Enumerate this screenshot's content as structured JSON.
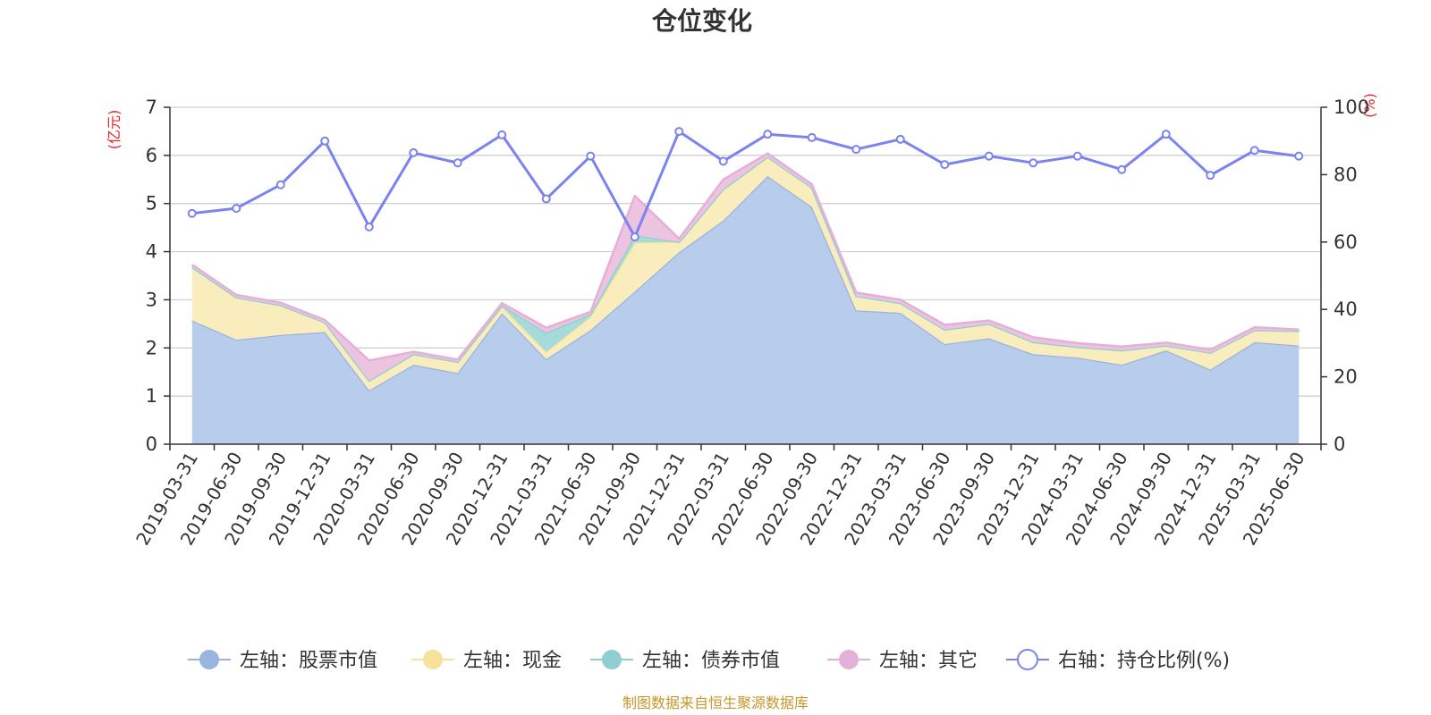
{
  "chart_data": {
    "type": "area",
    "title": "仓位变化",
    "left_axis_unit": "(亿元)",
    "right_axis_unit": "(%)",
    "ylim_left": [
      0,
      7
    ],
    "ylim_right": [
      0,
      100
    ],
    "left_ticks": [
      "0",
      "1",
      "2",
      "3",
      "4",
      "5",
      "6",
      "7"
    ],
    "right_ticks": [
      "0",
      "20",
      "40",
      "60",
      "80",
      "100"
    ],
    "grid": true,
    "legend_position": "bottom",
    "stacked": true,
    "source": "制图数据来自恒生聚源数据库",
    "categories": [
      "2019-03-31",
      "2019-06-30",
      "2019-09-30",
      "2019-12-31",
      "2020-03-31",
      "2020-06-30",
      "2020-09-30",
      "2020-12-31",
      "2021-03-31",
      "2021-06-30",
      "2021-09-30",
      "2021-12-31",
      "2022-03-31",
      "2022-06-30",
      "2022-09-30",
      "2022-12-31",
      "2023-03-31",
      "2023-06-30",
      "2023-09-30",
      "2023-12-31",
      "2024-03-31",
      "2024-06-30",
      "2024-09-30",
      "2024-12-31",
      "2025-03-31",
      "2025-06-30"
    ],
    "series": [
      {
        "name": "左轴：股票市值",
        "axis": "left",
        "color": "#9ab4e0",
        "fill": "#b8cdeb",
        "values": [
          2.57,
          2.17,
          2.27,
          2.33,
          1.12,
          1.65,
          1.48,
          2.72,
          1.77,
          2.37,
          3.17,
          3.99,
          4.65,
          5.57,
          4.93,
          2.78,
          2.73,
          2.08,
          2.2,
          1.87,
          1.8,
          1.65,
          1.95,
          1.55,
          2.12,
          2.05
        ]
      },
      {
        "name": "左轴：现金",
        "axis": "left",
        "color": "#f7e29b",
        "fill": "#f9ecbd",
        "values": [
          1.11,
          0.88,
          0.62,
          0.2,
          0.2,
          0.22,
          0.23,
          0.14,
          0.15,
          0.28,
          1.02,
          0.21,
          0.65,
          0.4,
          0.4,
          0.3,
          0.2,
          0.3,
          0.3,
          0.25,
          0.22,
          0.3,
          0.1,
          0.35,
          0.25,
          0.3
        ]
      },
      {
        "name": "左轴：债券市值",
        "axis": "left",
        "color": "#8fcfd0",
        "fill": "#a6dbdb",
        "values": [
          0,
          0,
          0,
          0,
          0,
          0,
          0,
          0.02,
          0.4,
          0.05,
          0.15,
          0,
          0,
          0,
          0,
          0,
          0,
          0,
          0,
          0,
          0,
          0,
          0,
          0,
          0,
          0
        ]
      },
      {
        "name": "左轴：其它",
        "axis": "left",
        "color": "#e5b0d8",
        "fill": "#ecc4e0",
        "values": [
          0.05,
          0.05,
          0.05,
          0.05,
          0.42,
          0.05,
          0.05,
          0.05,
          0.1,
          0.05,
          0.82,
          0.07,
          0.2,
          0.07,
          0.07,
          0.07,
          0.07,
          0.1,
          0.07,
          0.1,
          0.08,
          0.08,
          0.06,
          0.06,
          0.06,
          0.03
        ]
      },
      {
        "name": "右轴：持仓比例(%)",
        "axis": "right",
        "color": "#7b83ee",
        "values": [
          68.5,
          70,
          77,
          90,
          64.5,
          86.5,
          83.5,
          91.8,
          72.8,
          85.5,
          61.5,
          92.8,
          84,
          92,
          91,
          87.5,
          90.5,
          83,
          85.5,
          83.5,
          85.5,
          81.5,
          92,
          79.8,
          87.2,
          85.5
        ]
      }
    ]
  }
}
